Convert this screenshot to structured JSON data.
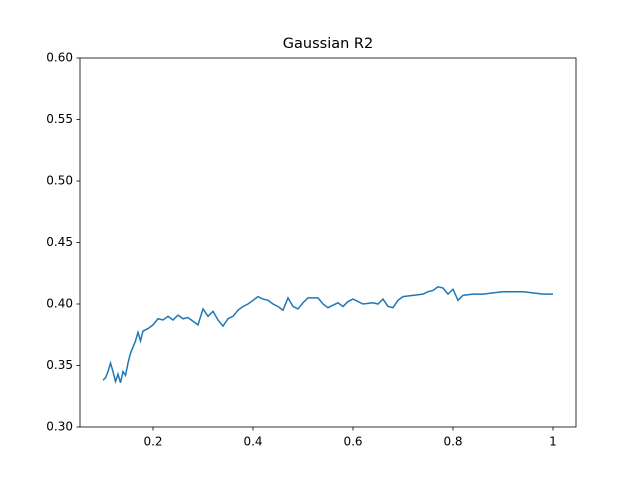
{
  "chart_data": {
    "type": "line",
    "title": "Gaussian R2",
    "x": [
      0.1,
      0.105,
      0.11,
      0.115,
      0.12,
      0.125,
      0.13,
      0.135,
      0.14,
      0.145,
      0.15,
      0.155,
      0.16,
      0.165,
      0.17,
      0.175,
      0.18,
      0.19,
      0.2,
      0.21,
      0.22,
      0.23,
      0.24,
      0.25,
      0.26,
      0.27,
      0.28,
      0.29,
      0.3,
      0.31,
      0.32,
      0.33,
      0.34,
      0.35,
      0.36,
      0.37,
      0.38,
      0.39,
      0.4,
      0.41,
      0.42,
      0.43,
      0.44,
      0.45,
      0.46,
      0.47,
      0.48,
      0.49,
      0.5,
      0.51,
      0.52,
      0.53,
      0.54,
      0.55,
      0.56,
      0.57,
      0.58,
      0.59,
      0.6,
      0.62,
      0.64,
      0.65,
      0.66,
      0.67,
      0.68,
      0.69,
      0.7,
      0.72,
      0.74,
      0.75,
      0.76,
      0.77,
      0.78,
      0.79,
      0.8,
      0.81,
      0.82,
      0.84,
      0.86,
      0.88,
      0.9,
      0.92,
      0.94,
      0.96,
      0.98,
      1.0
    ],
    "series": [
      {
        "color": "#1f77b4",
        "values": [
          0.338,
          0.34,
          0.345,
          0.352,
          0.345,
          0.337,
          0.343,
          0.336,
          0.345,
          0.342,
          0.352,
          0.36,
          0.365,
          0.37,
          0.377,
          0.37,
          0.378,
          0.38,
          0.383,
          0.388,
          0.387,
          0.39,
          0.387,
          0.391,
          0.388,
          0.389,
          0.386,
          0.383,
          0.396,
          0.39,
          0.394,
          0.387,
          0.382,
          0.388,
          0.39,
          0.395,
          0.398,
          0.4,
          0.403,
          0.406,
          0.404,
          0.403,
          0.4,
          0.398,
          0.395,
          0.405,
          0.398,
          0.396,
          0.401,
          0.405,
          0.405,
          0.405,
          0.4,
          0.397,
          0.399,
          0.401,
          0.398,
          0.402,
          0.404,
          0.4,
          0.401,
          0.4,
          0.404,
          0.398,
          0.397,
          0.403,
          0.406,
          0.407,
          0.408,
          0.41,
          0.411,
          0.414,
          0.413,
          0.408,
          0.412,
          0.403,
          0.407,
          0.408,
          0.408,
          0.409,
          0.41,
          0.41,
          0.41,
          0.409,
          0.408,
          0.408
        ]
      }
    ],
    "xlim": [
      0.054,
      1.046
    ],
    "xticks": [
      0.2,
      0.4,
      0.6,
      0.8,
      1.0
    ],
    "ylim": [
      0.3,
      0.6
    ],
    "yticks": [
      {
        "value": 0.3,
        "label": "0.30"
      },
      0.35,
      {
        "value": 0.4,
        "label": "0.40"
      },
      0.45,
      {
        "value": 0.5,
        "label": "0.50"
      },
      0.55,
      {
        "value": 0.6,
        "label": "0.60"
      }
    ]
  }
}
